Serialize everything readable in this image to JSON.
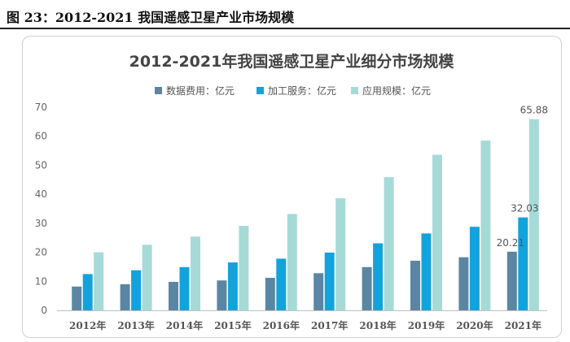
{
  "figure": {
    "caption": "图 23：2012-2021 我国遥感卫星产业市场规模"
  },
  "colors": {
    "series_1": "#5b86a3",
    "series_2": "#13a3dc",
    "series_3": "#a6dad7",
    "axis": "#bfbfbf",
    "frame": "#cfcfcf"
  },
  "chart_data": {
    "type": "bar",
    "title": "2012-2021年我国遥感卫星产业细分市场规模",
    "xlabel": "",
    "ylabel": "",
    "categories": [
      "2012年",
      "2013年",
      "2014年",
      "2015年",
      "2016年",
      "2017年",
      "2018年",
      "2019年",
      "2020年",
      "2021年"
    ],
    "series": [
      {
        "name": "数据费用：亿元",
        "values": [
          8.2,
          9.0,
          9.8,
          10.3,
          11.2,
          12.8,
          14.9,
          17.1,
          18.3,
          20.21
        ]
      },
      {
        "name": "加工服务：亿元",
        "values": [
          12.5,
          13.8,
          14.9,
          16.5,
          17.8,
          19.9,
          23.1,
          26.5,
          28.8,
          32.03
        ]
      },
      {
        "name": "应用规模：亿元",
        "values": [
          20.0,
          22.6,
          25.4,
          29.1,
          33.2,
          38.6,
          45.9,
          53.6,
          58.5,
          65.88
        ]
      }
    ],
    "ylim": [
      0,
      70
    ],
    "yticks": [
      0,
      10,
      20,
      30,
      40,
      50,
      60,
      70
    ],
    "data_labels": [
      {
        "series": 0,
        "index": 9,
        "text": "20.21"
      },
      {
        "series": 1,
        "index": 9,
        "text": "32.03"
      },
      {
        "series": 2,
        "index": 9,
        "text": "65.88"
      }
    ],
    "grid": false,
    "legend_position": "top"
  }
}
